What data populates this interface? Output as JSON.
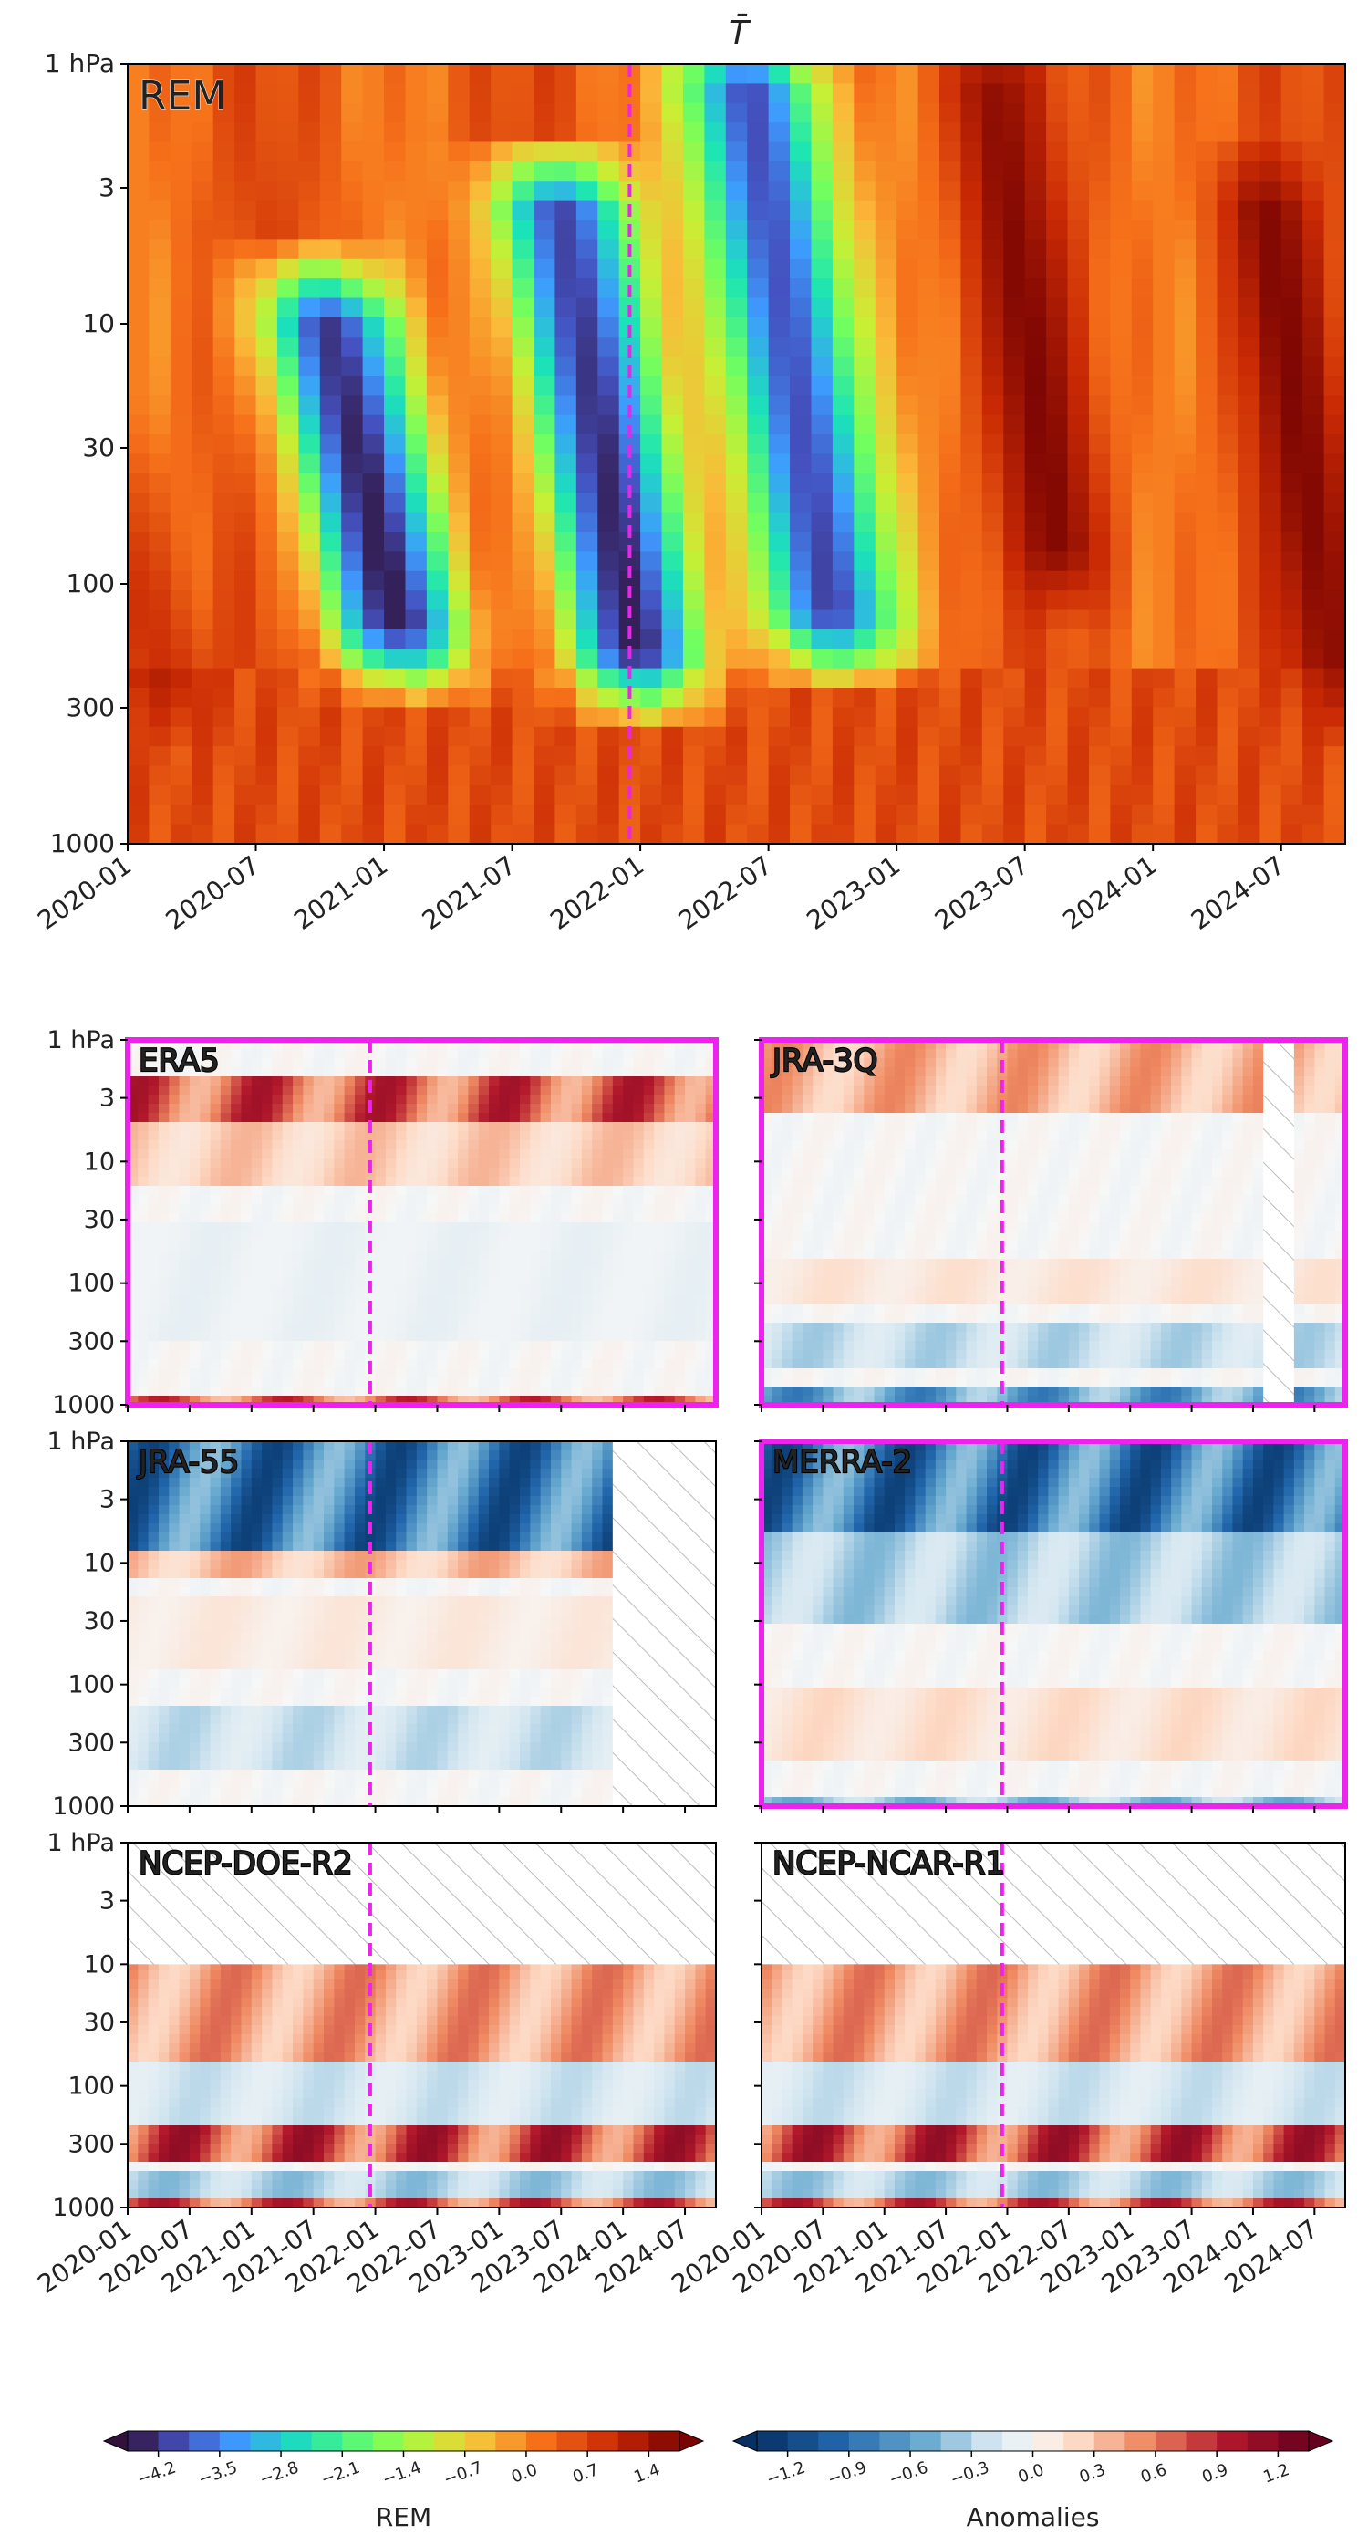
{
  "figure": {
    "title": "T̄",
    "main_label": "REM",
    "colors": {
      "highlight": "#ee22ee",
      "hatch": "#bbbbbb",
      "event_line": "#ee22ee"
    }
  },
  "chart_data": [
    {
      "type": "heatmap",
      "id": "rem-main",
      "title": "T̄",
      "panel_label": "REM",
      "x_range": [
        "2020-01",
        "2024-09"
      ],
      "x_ticks": [
        "2020-01",
        "2020-07",
        "2021-01",
        "2021-07",
        "2022-01",
        "2022-07",
        "2023-01",
        "2023-07",
        "2024-01",
        "2024-07"
      ],
      "y_axis": "pressure (log, inverted)",
      "y_ticks": [
        "1 hPa",
        "3",
        "10",
        "30",
        "100",
        "300",
        "1000"
      ],
      "y_values": [
        1,
        3,
        10,
        30,
        100,
        300,
        1000
      ],
      "event_date": "2021-12",
      "colorscale": "turbo",
      "value_range": [
        -4.2,
        1.4
      ],
      "features": [
        {
          "center": "2020-12",
          "value": -4.2,
          "top_hPa": 8,
          "bottom_hPa": 200
        },
        {
          "center": "2021-11",
          "value": -4.2,
          "top_hPa": 3,
          "bottom_hPa": 250
        },
        {
          "center": "2022-08",
          "value": -4.2,
          "top_hPa": 1,
          "bottom_hPa": 180
        },
        {
          "center": "2023-07",
          "value": 1.4,
          "top_hPa": 1,
          "bottom_hPa": 100
        },
        {
          "center": "2024-08",
          "value": 1.4,
          "top_hPa": 3,
          "bottom_hPa": 300
        },
        {
          "center": "2020-01",
          "value": 1.2,
          "top_hPa": 30,
          "bottom_hPa": 300
        }
      ]
    },
    {
      "type": "heatmap",
      "id": "era5",
      "panel_label": "ERA5",
      "highlight": true,
      "x_range": [
        "2020-01",
        "2024-09"
      ],
      "colorscale": "RdBu_r",
      "value_range": [
        -1.2,
        1.2
      ],
      "layers": [
        {
          "top_hPa": 2,
          "bottom_hPa": 5,
          "value": 1.1
        },
        {
          "top_hPa": 5,
          "bottom_hPa": 15,
          "value": 0.4
        },
        {
          "top_hPa": 30,
          "bottom_hPa": 300,
          "value": -0.1
        },
        {
          "top_hPa": 800,
          "bottom_hPa": 1000,
          "value": 1.0
        }
      ],
      "missing": []
    },
    {
      "type": "heatmap",
      "id": "jra-3q",
      "panel_label": "JRA-3Q",
      "highlight": true,
      "x_range": [
        "2020-01",
        "2024-09"
      ],
      "colorscale": "RdBu_r",
      "value_range": [
        -1.2,
        1.2
      ],
      "layers": [
        {
          "top_hPa": 1,
          "bottom_hPa": 4,
          "value": 0.6
        },
        {
          "top_hPa": 60,
          "bottom_hPa": 150,
          "value": 0.2
        },
        {
          "top_hPa": 200,
          "bottom_hPa": 500,
          "value": -0.4
        },
        {
          "top_hPa": 700,
          "bottom_hPa": 1000,
          "value": -0.9
        }
      ],
      "missing": [
        {
          "from": "2024-02",
          "to": "2024-04",
          "top_hPa": 1,
          "bottom_hPa": 1000
        }
      ]
    },
    {
      "type": "heatmap",
      "id": "jra-55",
      "panel_label": "JRA-55",
      "highlight": false,
      "x_range": [
        "2020-01",
        "2024-09"
      ],
      "colorscale": "RdBu_r",
      "value_range": [
        -1.2,
        1.2
      ],
      "layers": [
        {
          "top_hPa": 1,
          "bottom_hPa": 8,
          "value": -1.3
        },
        {
          "top_hPa": 8,
          "bottom_hPa": 14,
          "value": 0.5
        },
        {
          "top_hPa": 20,
          "bottom_hPa": 80,
          "value": 0.15
        },
        {
          "top_hPa": 150,
          "bottom_hPa": 500,
          "value": -0.35
        }
      ],
      "missing": [
        {
          "from": "2023-12",
          "to": "2024-09",
          "top_hPa": 1,
          "bottom_hPa": 1000
        }
      ]
    },
    {
      "type": "heatmap",
      "id": "merra-2",
      "panel_label": "MERRA-2",
      "highlight": true,
      "x_range": [
        "2020-01",
        "2024-09"
      ],
      "colorscale": "RdBu_r",
      "value_range": [
        -1.2,
        1.2
      ],
      "layers": [
        {
          "top_hPa": 1,
          "bottom_hPa": 6,
          "value": -1.3
        },
        {
          "top_hPa": 6,
          "bottom_hPa": 30,
          "value": -0.5
        },
        {
          "top_hPa": 100,
          "bottom_hPa": 400,
          "value": 0.25
        },
        {
          "top_hPa": 900,
          "bottom_hPa": 1000,
          "value": -0.6
        }
      ],
      "missing": []
    },
    {
      "type": "heatmap",
      "id": "ncep-doe-r2",
      "panel_label": "NCEP-DOE-R2",
      "highlight": false,
      "x_range": [
        "2020-01",
        "2024-09"
      ],
      "colorscale": "RdBu_r",
      "value_range": [
        -1.2,
        1.2
      ],
      "layers": [
        {
          "top_hPa": 10,
          "bottom_hPa": 60,
          "value": 0.7
        },
        {
          "top_hPa": 60,
          "bottom_hPa": 200,
          "value": -0.3
        },
        {
          "top_hPa": 220,
          "bottom_hPa": 400,
          "value": 1.2
        },
        {
          "top_hPa": 500,
          "bottom_hPa": 800,
          "value": -0.5
        },
        {
          "top_hPa": 850,
          "bottom_hPa": 1000,
          "value": 1.1
        }
      ],
      "missing": [
        {
          "from": "2020-01",
          "to": "2024-09",
          "top_hPa": 1,
          "bottom_hPa": 10
        }
      ]
    },
    {
      "type": "heatmap",
      "id": "ncep-ncar-r1",
      "panel_label": "NCEP-NCAR-R1",
      "highlight": false,
      "x_range": [
        "2020-01",
        "2024-09"
      ],
      "colorscale": "RdBu_r",
      "value_range": [
        -1.2,
        1.2
      ],
      "layers": [
        {
          "top_hPa": 10,
          "bottom_hPa": 60,
          "value": 0.7
        },
        {
          "top_hPa": 60,
          "bottom_hPa": 200,
          "value": -0.3
        },
        {
          "top_hPa": 220,
          "bottom_hPa": 400,
          "value": 1.2
        },
        {
          "top_hPa": 500,
          "bottom_hPa": 800,
          "value": -0.5
        },
        {
          "top_hPa": 850,
          "bottom_hPa": 1000,
          "value": 1.1
        }
      ],
      "missing": [
        {
          "from": "2020-01",
          "to": "2024-09",
          "top_hPa": 1,
          "bottom_hPa": 10
        }
      ]
    }
  ],
  "small_x_ticks": [
    "2020-01",
    "2020-07",
    "2021-01",
    "2021-07",
    "2022-01",
    "2022-07",
    "2023-01",
    "2023-07",
    "2024-01",
    "2024-07"
  ],
  "small_y_ticks": [
    "1 hPa",
    "3",
    "10",
    "30",
    "100",
    "300",
    "1000"
  ],
  "colorbars": [
    {
      "label": "REM",
      "ticks": [
        "−4.2",
        "−3.5",
        "−2.8",
        "−2.1",
        "−1.4",
        "−0.7",
        "0.0",
        "0.7",
        "1.4"
      ],
      "range": [
        -4.55,
        1.75
      ],
      "colormap": "turbo"
    },
    {
      "label": "Anomalies",
      "ticks": [
        "−1.2",
        "−0.9",
        "−0.6",
        "−0.3",
        "0.0",
        "0.3",
        "0.6",
        "0.9",
        "1.2"
      ],
      "range": [
        -1.5,
        1.5
      ],
      "colormap": "RdBu_r"
    }
  ]
}
